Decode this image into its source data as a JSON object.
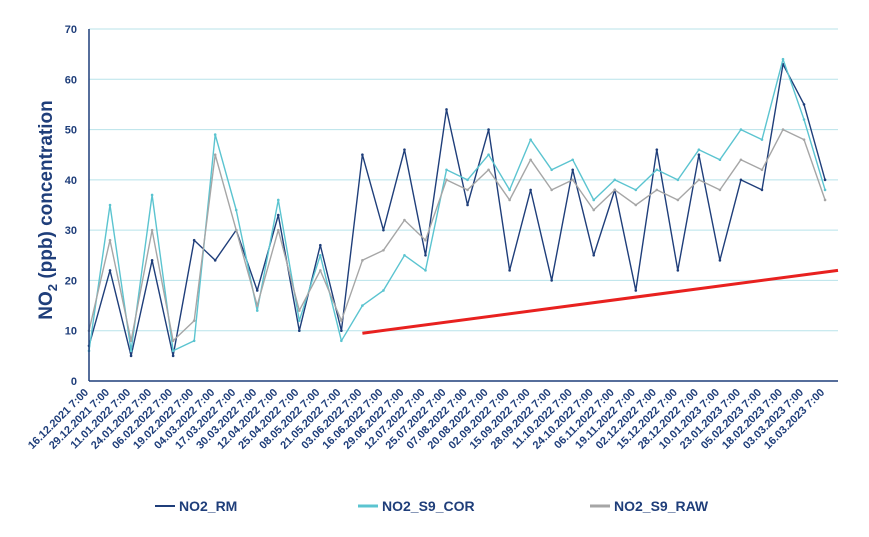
{
  "chart_data": {
    "type": "line",
    "ylabel_parts": [
      "NO",
      "2",
      " (ppb) concentration"
    ],
    "ylim": [
      0,
      70
    ],
    "yticks": [
      0,
      10,
      20,
      30,
      40,
      50,
      60,
      70
    ],
    "grid": true,
    "legend_position": "bottom",
    "xlim": [
      "16.12.2021 7:00",
      "24.03.2023 7:00"
    ],
    "x_tick_labels": [
      "16.12.2021 7:00",
      "29.12.2021 7:00",
      "11.01.2022 7:00",
      "24.01.2022 7:00",
      "06.02.2022 7:00",
      "19.02.2022 7:00",
      "04.03.2022 7:00",
      "17.03.2022 7:00",
      "30.03.2022 7:00",
      "12.04.2022 7:00",
      "25.04.2022 7:00",
      "08.05.2022 7:00",
      "21.05.2022 7:00",
      "03.06.2022 7:00",
      "16.06.2022 7:00",
      "29.06.2022 7:00",
      "12.07.2022 7:00",
      "25.07.2022 7:00",
      "07.08.2022 7:00",
      "20.08.2022 7:00",
      "02.09.2022 7:00",
      "15.09.2022 7:00",
      "28.09.2022 7:00",
      "11.10.2022 7:00",
      "24.10.2022 7:00",
      "06.11.2022 7:00",
      "19.11.2022 7:00",
      "02.12.2022 7:00",
      "15.12.2022 7:00",
      "28.12.2022 7:00",
      "10.01.2023 7:00",
      "23.01.2023 7:00",
      "05.02.2023 7:00",
      "18.02.2023 7:00",
      "03.03.2023 7:00",
      "16.03.2023 7:00"
    ],
    "series": [
      {
        "name": "NO2_RM",
        "color": "#1f3e7a",
        "x": [
          "16.12.2021 7:00",
          "29.12.2021 7:00",
          "11.01.2022 7:00",
          "24.01.2022 7:00",
          "06.02.2022 7:00",
          "19.02.2022 7:00",
          "04.03.2022 7:00",
          "17.03.2022 7:00",
          "30.03.2022 7:00",
          "12.04.2022 7:00",
          "25.04.2022 7:00",
          "08.05.2022 7:00",
          "21.05.2022 7:00",
          "03.06.2022 7:00",
          "16.06.2022 7:00",
          "29.06.2022 7:00",
          "12.07.2022 7:00",
          "25.07.2022 7:00",
          "07.08.2022 7:00",
          "20.08.2022 7:00",
          "02.09.2022 7:00",
          "15.09.2022 7:00",
          "28.09.2022 7:00",
          "11.10.2022 7:00",
          "24.10.2022 7:00",
          "06.11.2022 7:00",
          "19.11.2022 7:00",
          "02.12.2022 7:00",
          "15.12.2022 7:00",
          "28.12.2022 7:00",
          "10.01.2023 7:00",
          "23.01.2023 7:00",
          "05.02.2023 7:00",
          "18.02.2023 7:00",
          "03.03.2023 7:00",
          "16.03.2023 7:00"
        ],
        "values": [
          7,
          22,
          5,
          24,
          5,
          28,
          24,
          30,
          18,
          33,
          10,
          27,
          10,
          45,
          30,
          46,
          25,
          54,
          35,
          50,
          22,
          38,
          20,
          42,
          25,
          38,
          18,
          46,
          22,
          45,
          24,
          40,
          38,
          63,
          55,
          40
        ]
      },
      {
        "name": "NO2_S9_COR",
        "color": "#5bc4d0",
        "x": [
          "16.12.2021 7:00",
          "29.12.2021 7:00",
          "11.01.2022 7:00",
          "24.01.2022 7:00",
          "06.02.2022 7:00",
          "19.02.2022 7:00",
          "04.03.2022 7:00",
          "17.03.2022 7:00",
          "30.03.2022 7:00",
          "12.04.2022 7:00",
          "25.04.2022 7:00",
          "08.05.2022 7:00",
          "21.05.2022 7:00",
          "03.06.2022 7:00",
          "16.06.2022 7:00",
          "29.06.2022 7:00",
          "12.07.2022 7:00",
          "25.07.2022 7:00",
          "07.08.2022 7:00",
          "20.08.2022 7:00",
          "02.09.2022 7:00",
          "15.09.2022 7:00",
          "28.09.2022 7:00",
          "11.10.2022 7:00",
          "24.10.2022 7:00",
          "06.11.2022 7:00",
          "19.11.2022 7:00",
          "02.12.2022 7:00",
          "15.12.2022 7:00",
          "28.12.2022 7:00",
          "10.01.2023 7:00",
          "23.01.2023 7:00",
          "05.02.2023 7:00",
          "18.02.2023 7:00",
          "03.03.2023 7:00",
          "16.03.2023 7:00"
        ],
        "values": [
          6,
          35,
          6,
          37,
          6,
          8,
          49,
          34,
          14,
          36,
          12,
          25,
          8,
          15,
          18,
          25,
          22,
          42,
          40,
          45,
          38,
          48,
          42,
          44,
          36,
          40,
          38,
          42,
          40,
          46,
          44,
          50,
          48,
          64,
          52,
          38
        ]
      },
      {
        "name": "NO2_S9_RAW",
        "color": "#a6a6a6",
        "x": [
          "16.12.2021 7:00",
          "29.12.2021 7:00",
          "11.01.2022 7:00",
          "24.01.2022 7:00",
          "06.02.2022 7:00",
          "19.02.2022 7:00",
          "04.03.2022 7:00",
          "17.03.2022 7:00",
          "30.03.2022 7:00",
          "12.04.2022 7:00",
          "25.04.2022 7:00",
          "08.05.2022 7:00",
          "21.05.2022 7:00",
          "03.06.2022 7:00",
          "16.06.2022 7:00",
          "29.06.2022 7:00",
          "12.07.2022 7:00",
          "25.07.2022 7:00",
          "07.08.2022 7:00",
          "20.08.2022 7:00",
          "02.09.2022 7:00",
          "15.09.2022 7:00",
          "28.09.2022 7:00",
          "11.10.2022 7:00",
          "24.10.2022 7:00",
          "06.11.2022 7:00",
          "19.11.2022 7:00",
          "02.12.2022 7:00",
          "15.12.2022 7:00",
          "28.12.2022 7:00",
          "10.01.2023 7:00",
          "23.01.2023 7:00",
          "05.02.2023 7:00",
          "18.02.2023 7:00",
          "03.03.2023 7:00",
          "16.03.2023 7:00"
        ],
        "values": [
          10,
          28,
          8,
          30,
          8,
          12,
          45,
          30,
          15,
          30,
          14,
          22,
          12,
          24,
          26,
          32,
          28,
          40,
          38,
          42,
          36,
          44,
          38,
          40,
          34,
          38,
          35,
          38,
          36,
          40,
          38,
          44,
          42,
          50,
          48,
          36
        ]
      }
    ],
    "trendline": {
      "color": "#e8211f",
      "x": [
        "03.06.2022 7:00",
        "24.03.2023 7:00"
      ],
      "values": [
        9.5,
        22
      ]
    }
  }
}
